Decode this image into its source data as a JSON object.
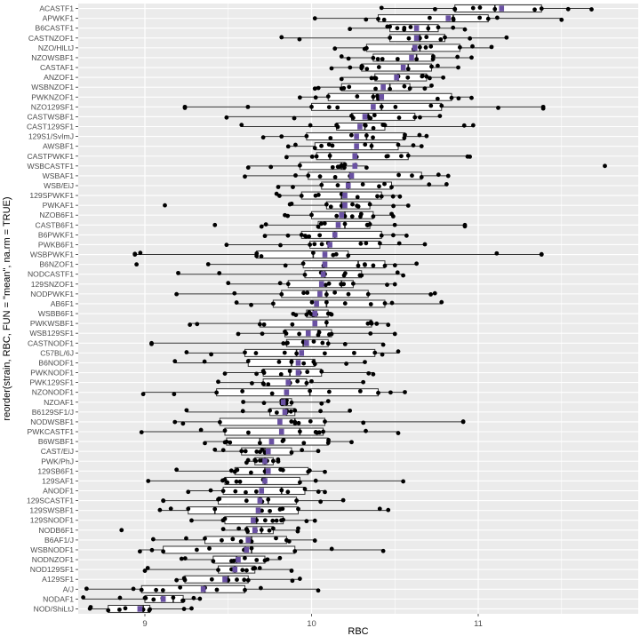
{
  "chart_data": {
    "type": "boxplot",
    "xlabel": "RBC",
    "ylabel": "reorder(strain, RBC, FUN = \"mean\", na.rm = TRUE)",
    "xlim": [
      8.6,
      11.96
    ],
    "x_ticks": [
      9,
      10,
      11
    ],
    "x_tick_labels": [
      "9",
      "10",
      "11"
    ],
    "grid": true,
    "background": "#ebebeb",
    "grid_color": "#ffffff",
    "mean_color": "#6a51a3",
    "point_color": "#000000",
    "categories": [
      "ACASTF1",
      "APWKF1",
      "B6CASTF1",
      "CASTNZOF1",
      "NZO/HlLtJ",
      "NZOWSBF1",
      "CASTAF1",
      "ANZOF1",
      "WSBNZOF1",
      "PWKNZOF1",
      "NZO129SF1",
      "CASTWSBF1",
      "CAST129SF1",
      "129S1/SvImJ",
      "AWSBF1",
      "CASTPWKF1",
      "WSBCASTF1",
      "WSBAF1",
      "WSB/EiJ",
      "129SPWKF1",
      "PWKAF1",
      "NZOB6F1",
      "CASTB6F1",
      "B6PWKF1",
      "PWKB6F1",
      "WSBPWKF1",
      "B6NZOF1",
      "NODCASTF1",
      "129SNZOF1",
      "NODPWKF1",
      "AB6F1",
      "WSBB6F1",
      "PWKWSBF1",
      "WSB129SF1",
      "CASTNODF1",
      "C57BL/6J",
      "B6NODF1",
      "PWKNODF1",
      "PWK129SF1",
      "NZONODF1",
      "NZOAF1",
      "B6129SF1/J",
      "NODWSBF1",
      "PWKCASTF1",
      "B6WSBF1",
      "CAST/EiJ",
      "PWK/PhJ",
      "129SB6F1",
      "129SAF1",
      "ANODF1",
      "129SCASTF1",
      "129SWSBF1",
      "129SNODF1",
      "NODB6F1",
      "B6AF1/J",
      "WSBNODF1",
      "NODNZOF1",
      "NOD129SF1",
      "A129SF1",
      "A/J",
      "NODAF1",
      "NOD/ShiLtJ"
    ],
    "series": [
      {
        "name": "",
        "q1": 10.86,
        "median": 11.1,
        "q3": 11.38,
        "mean": 11.14,
        "wlo": 10.42,
        "whi": 11.68
      },
      {
        "name": "",
        "q1": 10.4,
        "median": 10.85,
        "q3": 11.06,
        "mean": 10.82,
        "wlo": 10.02,
        "whi": 11.5
      },
      {
        "name": "",
        "q1": 10.47,
        "median": 10.7,
        "q3": 10.76,
        "mean": 10.63,
        "wlo": 10.23,
        "whi": 10.92
      },
      {
        "name": "",
        "q1": 10.47,
        "median": 10.65,
        "q3": 10.8,
        "mean": 10.63,
        "wlo": 9.82,
        "whi": 11.17
      },
      {
        "name": "",
        "q1": 10.33,
        "median": 10.65,
        "q3": 10.89,
        "mean": 10.62,
        "wlo": 10.14,
        "whi": 11.08
      },
      {
        "name": "",
        "q1": 10.37,
        "median": 10.63,
        "q3": 10.73,
        "mean": 10.6,
        "wlo": 10.18,
        "whi": 10.96
      },
      {
        "name": "",
        "q1": 10.3,
        "median": 10.58,
        "q3": 10.72,
        "mean": 10.55,
        "wlo": 10.12,
        "whi": 10.88
      },
      {
        "name": "",
        "q1": 10.38,
        "median": 10.52,
        "q3": 10.69,
        "mean": 10.51,
        "wlo": 10.18,
        "whi": 10.79
      },
      {
        "name": "",
        "q1": 10.18,
        "median": 10.47,
        "q3": 10.59,
        "mean": 10.43,
        "wlo": 10.02,
        "whi": 10.72
      },
      {
        "name": "",
        "q1": 10.1,
        "median": 10.37,
        "q3": 10.84,
        "mean": 10.42,
        "wlo": 9.93,
        "whi": 10.96
      },
      {
        "name": "",
        "q1": 10.0,
        "median": 10.42,
        "q3": 10.78,
        "mean": 10.37,
        "wlo": 9.24,
        "whi": 11.39
      },
      {
        "name": "",
        "q1": 10.24,
        "median": 10.34,
        "q3": 10.62,
        "mean": 10.32,
        "wlo": 9.49,
        "whi": 10.77
      },
      {
        "name": "",
        "q1": 10.15,
        "median": 10.32,
        "q3": 10.44,
        "mean": 10.29,
        "wlo": 9.58,
        "whi": 10.97
      },
      {
        "name": "",
        "q1": 9.97,
        "median": 10.33,
        "q3": 10.56,
        "mean": 10.27,
        "wlo": 9.71,
        "whi": 10.69
      },
      {
        "name": "",
        "q1": 10.02,
        "median": 10.36,
        "q3": 10.52,
        "mean": 10.27,
        "wlo": 9.86,
        "whi": 10.66
      },
      {
        "name": "",
        "q1": 10.03,
        "median": 10.11,
        "q3": 10.58,
        "mean": 10.26,
        "wlo": 9.85,
        "whi": 10.95
      },
      {
        "name": "",
        "q1": 9.93,
        "median": 10.18,
        "q3": 10.2,
        "mean": 10.26,
        "wlo": 9.62,
        "whi": 10.33
      },
      {
        "name": "",
        "q1": 9.98,
        "median": 10.23,
        "q3": 10.66,
        "mean": 10.24,
        "wlo": 9.6,
        "whi": 10.82
      },
      {
        "name": "",
        "q1": 10.06,
        "median": 10.22,
        "q3": 10.48,
        "mean": 10.22,
        "wlo": 9.8,
        "whi": 10.81
      },
      {
        "name": "",
        "q1": 9.94,
        "median": 10.18,
        "q3": 10.42,
        "mean": 10.2,
        "wlo": 9.79,
        "whi": 10.53
      },
      {
        "name": "",
        "q1": 10.09,
        "median": 10.18,
        "q3": 10.35,
        "mean": 10.2,
        "wlo": 9.87,
        "whi": 10.58
      },
      {
        "name": "",
        "q1": 10.0,
        "median": 10.2,
        "q3": 10.37,
        "mean": 10.18,
        "wlo": 9.84,
        "whi": 10.49
      },
      {
        "name": "",
        "q1": 10.04,
        "median": 10.2,
        "q3": 10.35,
        "mean": 10.16,
        "wlo": 9.7,
        "whi": 10.92
      },
      {
        "name": "",
        "q1": 9.94,
        "median": 10.14,
        "q3": 10.42,
        "mean": 10.14,
        "wlo": 9.72,
        "whi": 10.57
      },
      {
        "name": "",
        "q1": 9.99,
        "median": 10.1,
        "q3": 10.41,
        "mean": 10.11,
        "wlo": 9.49,
        "whi": 10.68
      },
      {
        "name": "",
        "q1": 9.67,
        "median": 10.01,
        "q3": 10.22,
        "mean": 10.08,
        "wlo": 8.94,
        "whi": 11.38
      },
      {
        "name": "",
        "q1": 9.95,
        "median": 10.28,
        "q3": 10.44,
        "mean": 10.08,
        "wlo": 9.38,
        "whi": 10.63
      },
      {
        "name": "",
        "q1": 9.96,
        "median": 10.08,
        "q3": 10.3,
        "mean": 10.07,
        "wlo": 9.2,
        "whi": 10.55
      },
      {
        "name": "",
        "q1": 9.86,
        "median": 10.18,
        "q3": 10.25,
        "mean": 10.06,
        "wlo": 9.5,
        "whi": 10.5
      },
      {
        "name": "",
        "q1": 9.82,
        "median": 10.09,
        "q3": 10.34,
        "mean": 10.05,
        "wlo": 9.19,
        "whi": 10.74
      },
      {
        "name": "",
        "q1": 9.77,
        "median": 10.09,
        "q3": 10.44,
        "mean": 10.03,
        "wlo": 9.55,
        "whi": 10.78
      },
      {
        "name": "",
        "q1": 9.97,
        "median": 10.01,
        "q3": 10.1,
        "mean": 10.02,
        "wlo": 9.89,
        "whi": 10.12
      },
      {
        "name": "",
        "q1": 9.69,
        "median": 10.09,
        "q3": 10.36,
        "mean": 10.02,
        "wlo": 9.27,
        "whi": 10.46
      },
      {
        "name": "",
        "q1": 9.84,
        "median": 10.04,
        "q3": 10.12,
        "mean": 9.98,
        "wlo": 9.56,
        "whi": 10.5
      },
      {
        "name": "",
        "q1": 9.85,
        "median": 9.95,
        "q3": 10.1,
        "mean": 9.97,
        "wlo": 9.04,
        "whi": 10.43
      },
      {
        "name": "",
        "q1": 9.6,
        "median": 9.91,
        "q3": 10.38,
        "mean": 9.94,
        "wlo": 9.25,
        "whi": 10.52
      },
      {
        "name": "",
        "q1": 9.62,
        "median": 9.88,
        "q3": 10.02,
        "mean": 9.92,
        "wlo": 9.18,
        "whi": 10.32
      },
      {
        "name": "",
        "q1": 9.71,
        "median": 9.87,
        "q3": 10.06,
        "mean": 9.92,
        "wlo": 9.48,
        "whi": 10.37
      },
      {
        "name": "",
        "q1": 9.71,
        "median": 9.87,
        "q3": 9.97,
        "mean": 9.86,
        "wlo": 9.44,
        "whi": 10.31
      },
      {
        "name": "",
        "q1": 9.43,
        "median": 9.99,
        "q3": 10.4,
        "mean": 9.85,
        "wlo": 8.99,
        "whi": 10.56
      },
      {
        "name": "",
        "q1": 9.82,
        "median": 9.83,
        "q3": 9.88,
        "mean": 9.83,
        "wlo": 9.59,
        "whi": 10.1
      },
      {
        "name": "",
        "q1": 9.75,
        "median": 9.85,
        "q3": 9.9,
        "mean": 9.84,
        "wlo": 9.25,
        "whi": 10.23
      },
      {
        "name": "",
        "q1": 9.45,
        "median": 9.9,
        "q3": 10.08,
        "mean": 9.81,
        "wlo": 9.18,
        "whi": 10.91
      },
      {
        "name": "",
        "q1": 9.48,
        "median": 9.93,
        "q3": 10.07,
        "mean": 9.82,
        "wlo": 8.98,
        "whi": 10.52
      },
      {
        "name": "",
        "q1": 9.49,
        "median": 9.69,
        "q3": 10.1,
        "mean": 9.76,
        "wlo": 9.36,
        "whi": 10.24
      },
      {
        "name": "",
        "q1": 9.58,
        "median": 9.72,
        "q3": 9.88,
        "mean": 9.74,
        "wlo": 9.42,
        "whi": 10.04
      },
      {
        "name": "",
        "q1": 9.66,
        "median": 9.72,
        "q3": 9.77,
        "mean": 9.72,
        "wlo": 9.61,
        "whi": 9.8
      },
      {
        "name": "",
        "q1": 9.54,
        "median": 9.72,
        "q3": 9.98,
        "mean": 9.74,
        "wlo": 9.19,
        "whi": 10.08
      },
      {
        "name": "",
        "q1": 9.48,
        "median": 9.72,
        "q3": 9.93,
        "mean": 9.72,
        "wlo": 9.02,
        "whi": 10.55
      },
      {
        "name": "",
        "q1": 9.47,
        "median": 9.82,
        "q3": 9.96,
        "mean": 9.7,
        "wlo": 9.26,
        "whi": 10.08
      },
      {
        "name": "",
        "q1": 9.44,
        "median": 9.74,
        "q3": 9.91,
        "mean": 9.69,
        "wlo": 9.11,
        "whi": 10.19
      },
      {
        "name": "",
        "q1": 9.26,
        "median": 9.42,
        "q3": 9.92,
        "mean": 9.68,
        "wlo": 9.09,
        "whi": 10.46
      },
      {
        "name": "",
        "q1": 9.48,
        "median": 9.67,
        "q3": 9.83,
        "mean": 9.65,
        "wlo": 9.28,
        "whi": 10.02
      },
      {
        "name": "",
        "q1": 9.61,
        "median": 9.7,
        "q3": 9.77,
        "mean": 9.66,
        "wlo": 9.47,
        "whi": 9.92
      },
      {
        "name": "",
        "q1": 9.36,
        "median": 9.64,
        "q3": 9.85,
        "mean": 9.62,
        "wlo": 9.05,
        "whi": 10.02
      },
      {
        "name": "",
        "q1": 9.11,
        "median": 9.64,
        "q3": 9.9,
        "mean": 9.61,
        "wlo": 8.97,
        "whi": 10.43
      },
      {
        "name": "",
        "q1": 9.41,
        "median": 9.55,
        "q3": 9.72,
        "mean": 9.56,
        "wlo": 9.22,
        "whi": 9.81
      },
      {
        "name": "",
        "q1": 9.44,
        "median": 9.54,
        "q3": 9.66,
        "mean": 9.54,
        "wlo": 9.0,
        "whi": 9.88
      },
      {
        "name": "",
        "q1": 9.24,
        "median": 9.5,
        "q3": 9.62,
        "mean": 9.48,
        "wlo": 9.19,
        "whi": 9.93
      },
      {
        "name": "",
        "q1": 8.98,
        "median": 9.36,
        "q3": 9.6,
        "mean": 9.35,
        "wlo": 8.65,
        "whi": 10.04
      },
      {
        "name": "",
        "q1": 9.0,
        "median": 9.17,
        "q3": 9.23,
        "mean": 9.11,
        "wlo": 8.63,
        "whi": 9.33
      },
      {
        "name": "",
        "q1": 8.78,
        "median": 8.99,
        "q3": 9.03,
        "mean": 8.97,
        "wlo": 8.67,
        "whi": 9.28
      }
    ],
    "outliers": [
      {
        "row": 10,
        "values": [
          9.24,
          11.39
        ]
      },
      {
        "row": 16,
        "values": [
          11.76
        ]
      },
      {
        "row": 25,
        "values": [
          8.94,
          11.38
        ]
      },
      {
        "row": 26,
        "values": [
          8.95
        ]
      },
      {
        "row": 20,
        "values": [
          9.12
        ]
      },
      {
        "row": 22,
        "values": [
          9.42,
          10.92
        ]
      },
      {
        "row": 34,
        "values": [
          9.04
        ]
      },
      {
        "row": 42,
        "values": [
          10.91
        ]
      },
      {
        "row": 53,
        "values": [
          8.86
        ]
      }
    ]
  }
}
